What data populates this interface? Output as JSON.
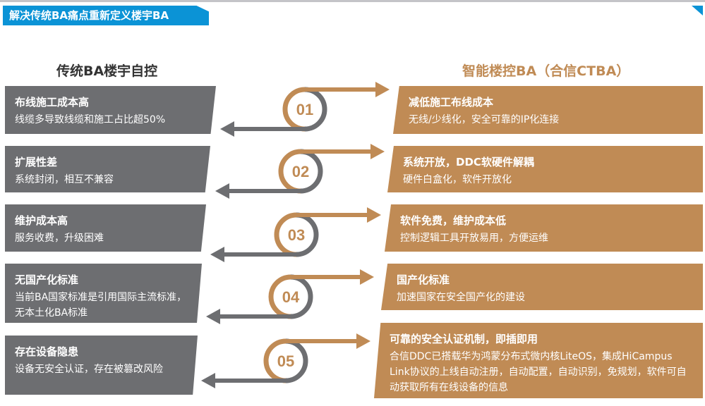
{
  "header": {
    "title": "解决传统BA痛点重新定义楼宇BA"
  },
  "colors": {
    "accent": "#0b93d6",
    "gold": "#c08b55",
    "grey": "#6d6e71"
  },
  "left": {
    "title": "传统BA楼宇自控",
    "items": [
      {
        "title": "布线施工成本高",
        "desc": "线缆多导致线缆和施工占比超50%"
      },
      {
        "title": "扩展性差",
        "desc": "系统封闭，相互不兼容"
      },
      {
        "title": "维护成本高",
        "desc": "服务收费，升级困难"
      },
      {
        "title": "无国产化标准",
        "desc": "当前BA国家标准是引用国际主流标准，无本土化BA标准"
      },
      {
        "title": "存在设备隐患",
        "desc": "设备无安全认证，存在被篡改风险"
      }
    ]
  },
  "right": {
    "title": "智能楼控BA（合信CTBA）",
    "items": [
      {
        "title": "减低施工布线成本",
        "desc": "无线/少线化，安全可靠的IP化连接"
      },
      {
        "title": "系统开放，DDC软硬件解耦",
        "desc": "硬件白盒化，软件开放化"
      },
      {
        "title": "软件免费，维护成本低",
        "desc": "控制逻辑工具开放易用，方便运维"
      },
      {
        "title": "国产化标准",
        "desc": "加速国家在安全国产化的建设"
      },
      {
        "title": "可靠的安全认证机制，即插即用",
        "desc": "合信DDC已搭载华为鸿蒙分布式微内核LiteOS，集成HiCampus Link协议的上线自动注册，自动配置，自动识别，免规划，软件可自动获取所有在线设备的信息"
      }
    ]
  },
  "steps": [
    "01",
    "02",
    "03",
    "04",
    "05"
  ]
}
